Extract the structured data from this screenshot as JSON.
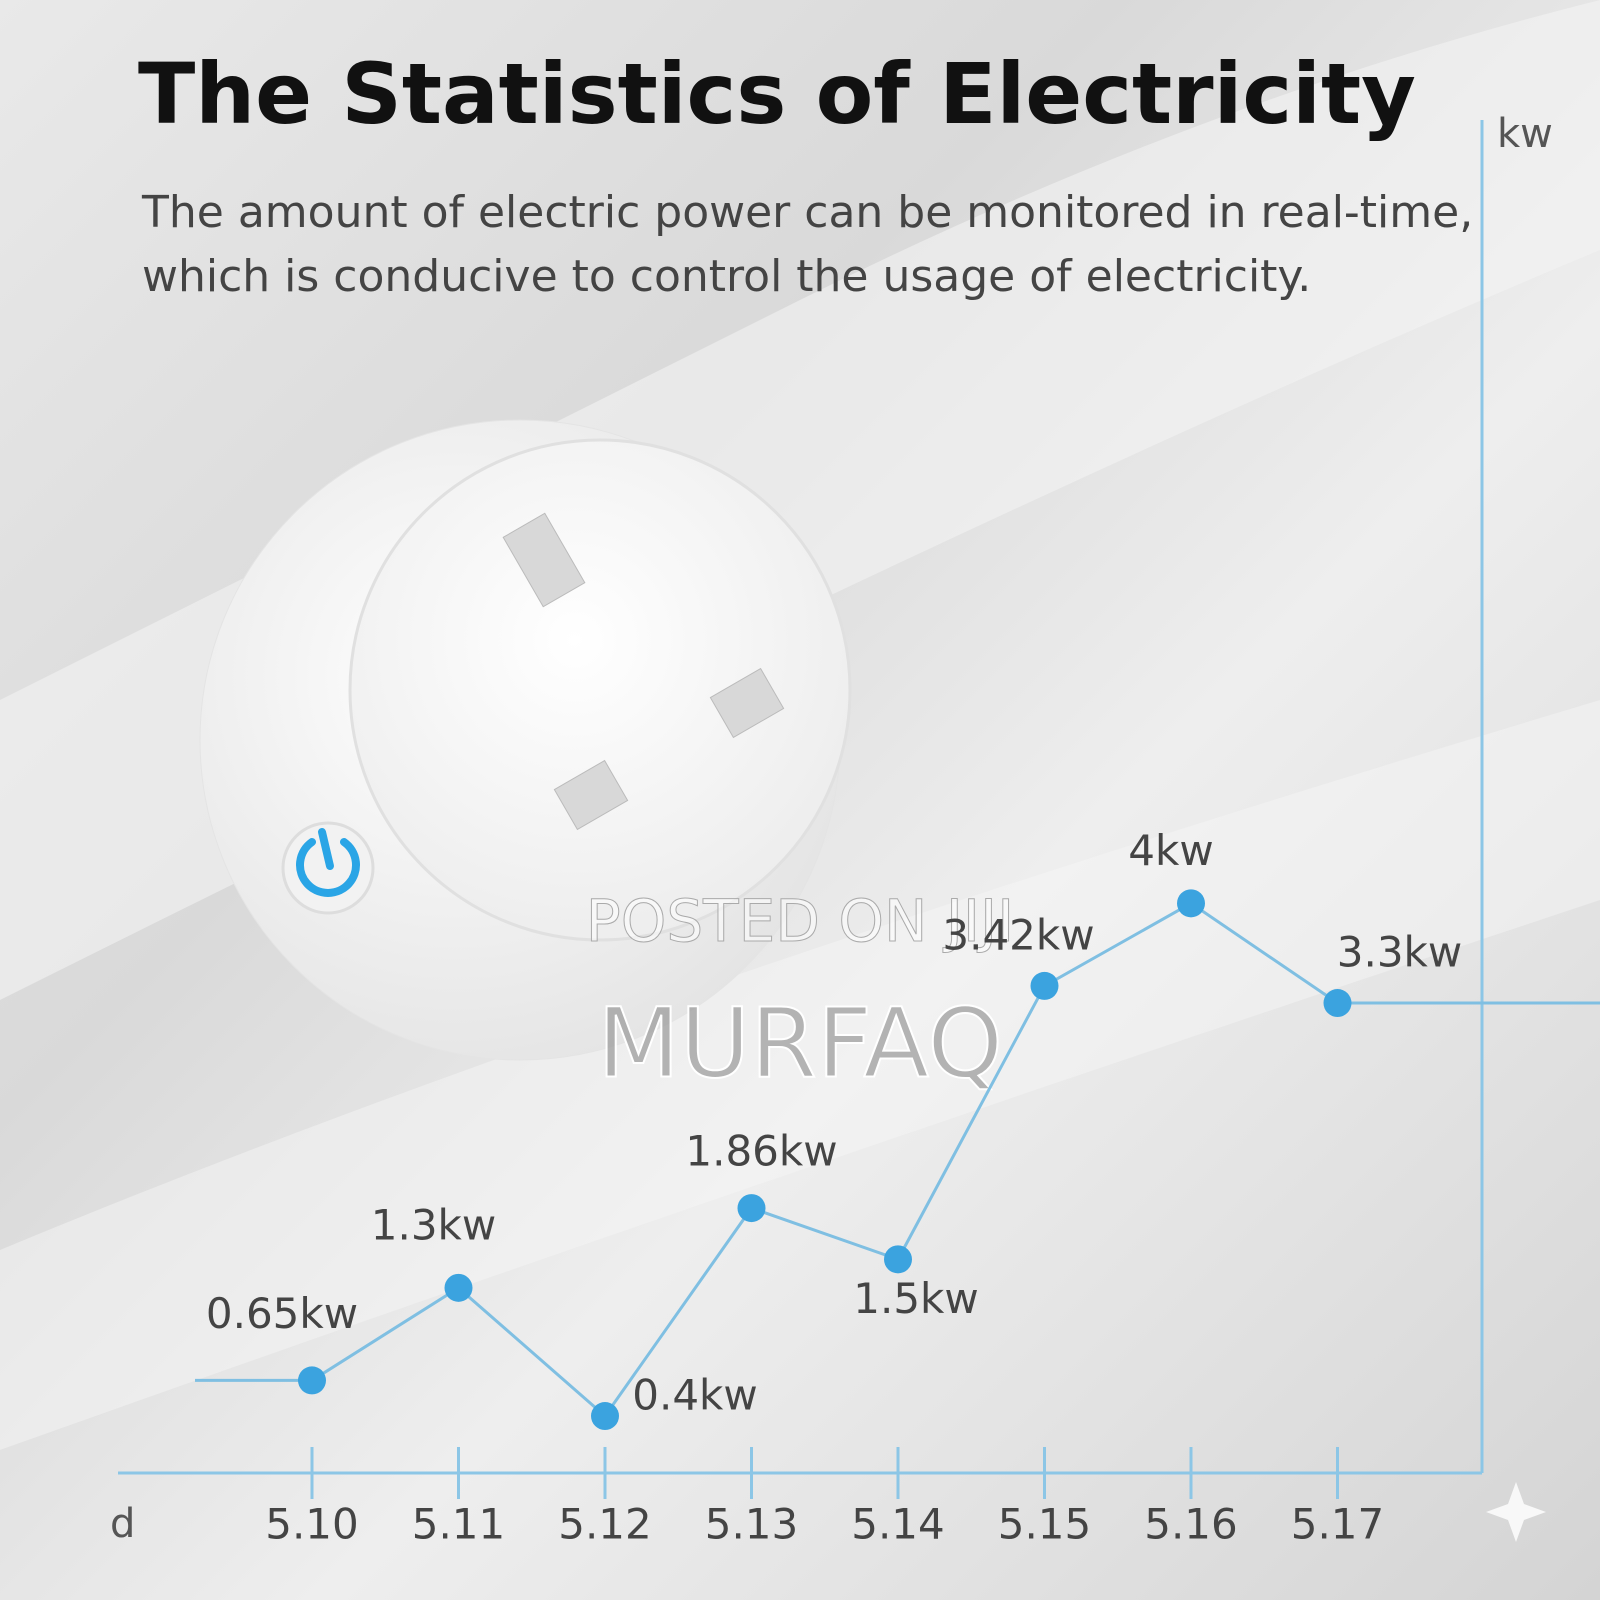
{
  "chart_data": {
    "type": "line",
    "title": "The Statistics of Electricity",
    "subtitle": [
      "The amount of electric power can be monitored in real-time,",
      "which is conducive to control the usage of electricity."
    ],
    "x_label": "d",
    "y_label": "kw",
    "categories": [
      "5.10",
      "5.11",
      "5.12",
      "5.13",
      "5.14",
      "5.15",
      "5.16",
      "5.17"
    ],
    "values": [
      0.65,
      1.3,
      0.4,
      1.86,
      1.5,
      3.42,
      4,
      3.3
    ],
    "value_labels": [
      "0.65kw",
      "1.3kw",
      "0.4kw",
      "1.86kw",
      "1.5kw",
      "3.42kw",
      "4kw",
      "3.3kw"
    ],
    "color": "#3ba3df",
    "ylim": [
      0,
      9.5
    ],
    "annotations": [
      "POSTED ON JIJI",
      "MURFAQ"
    ]
  }
}
